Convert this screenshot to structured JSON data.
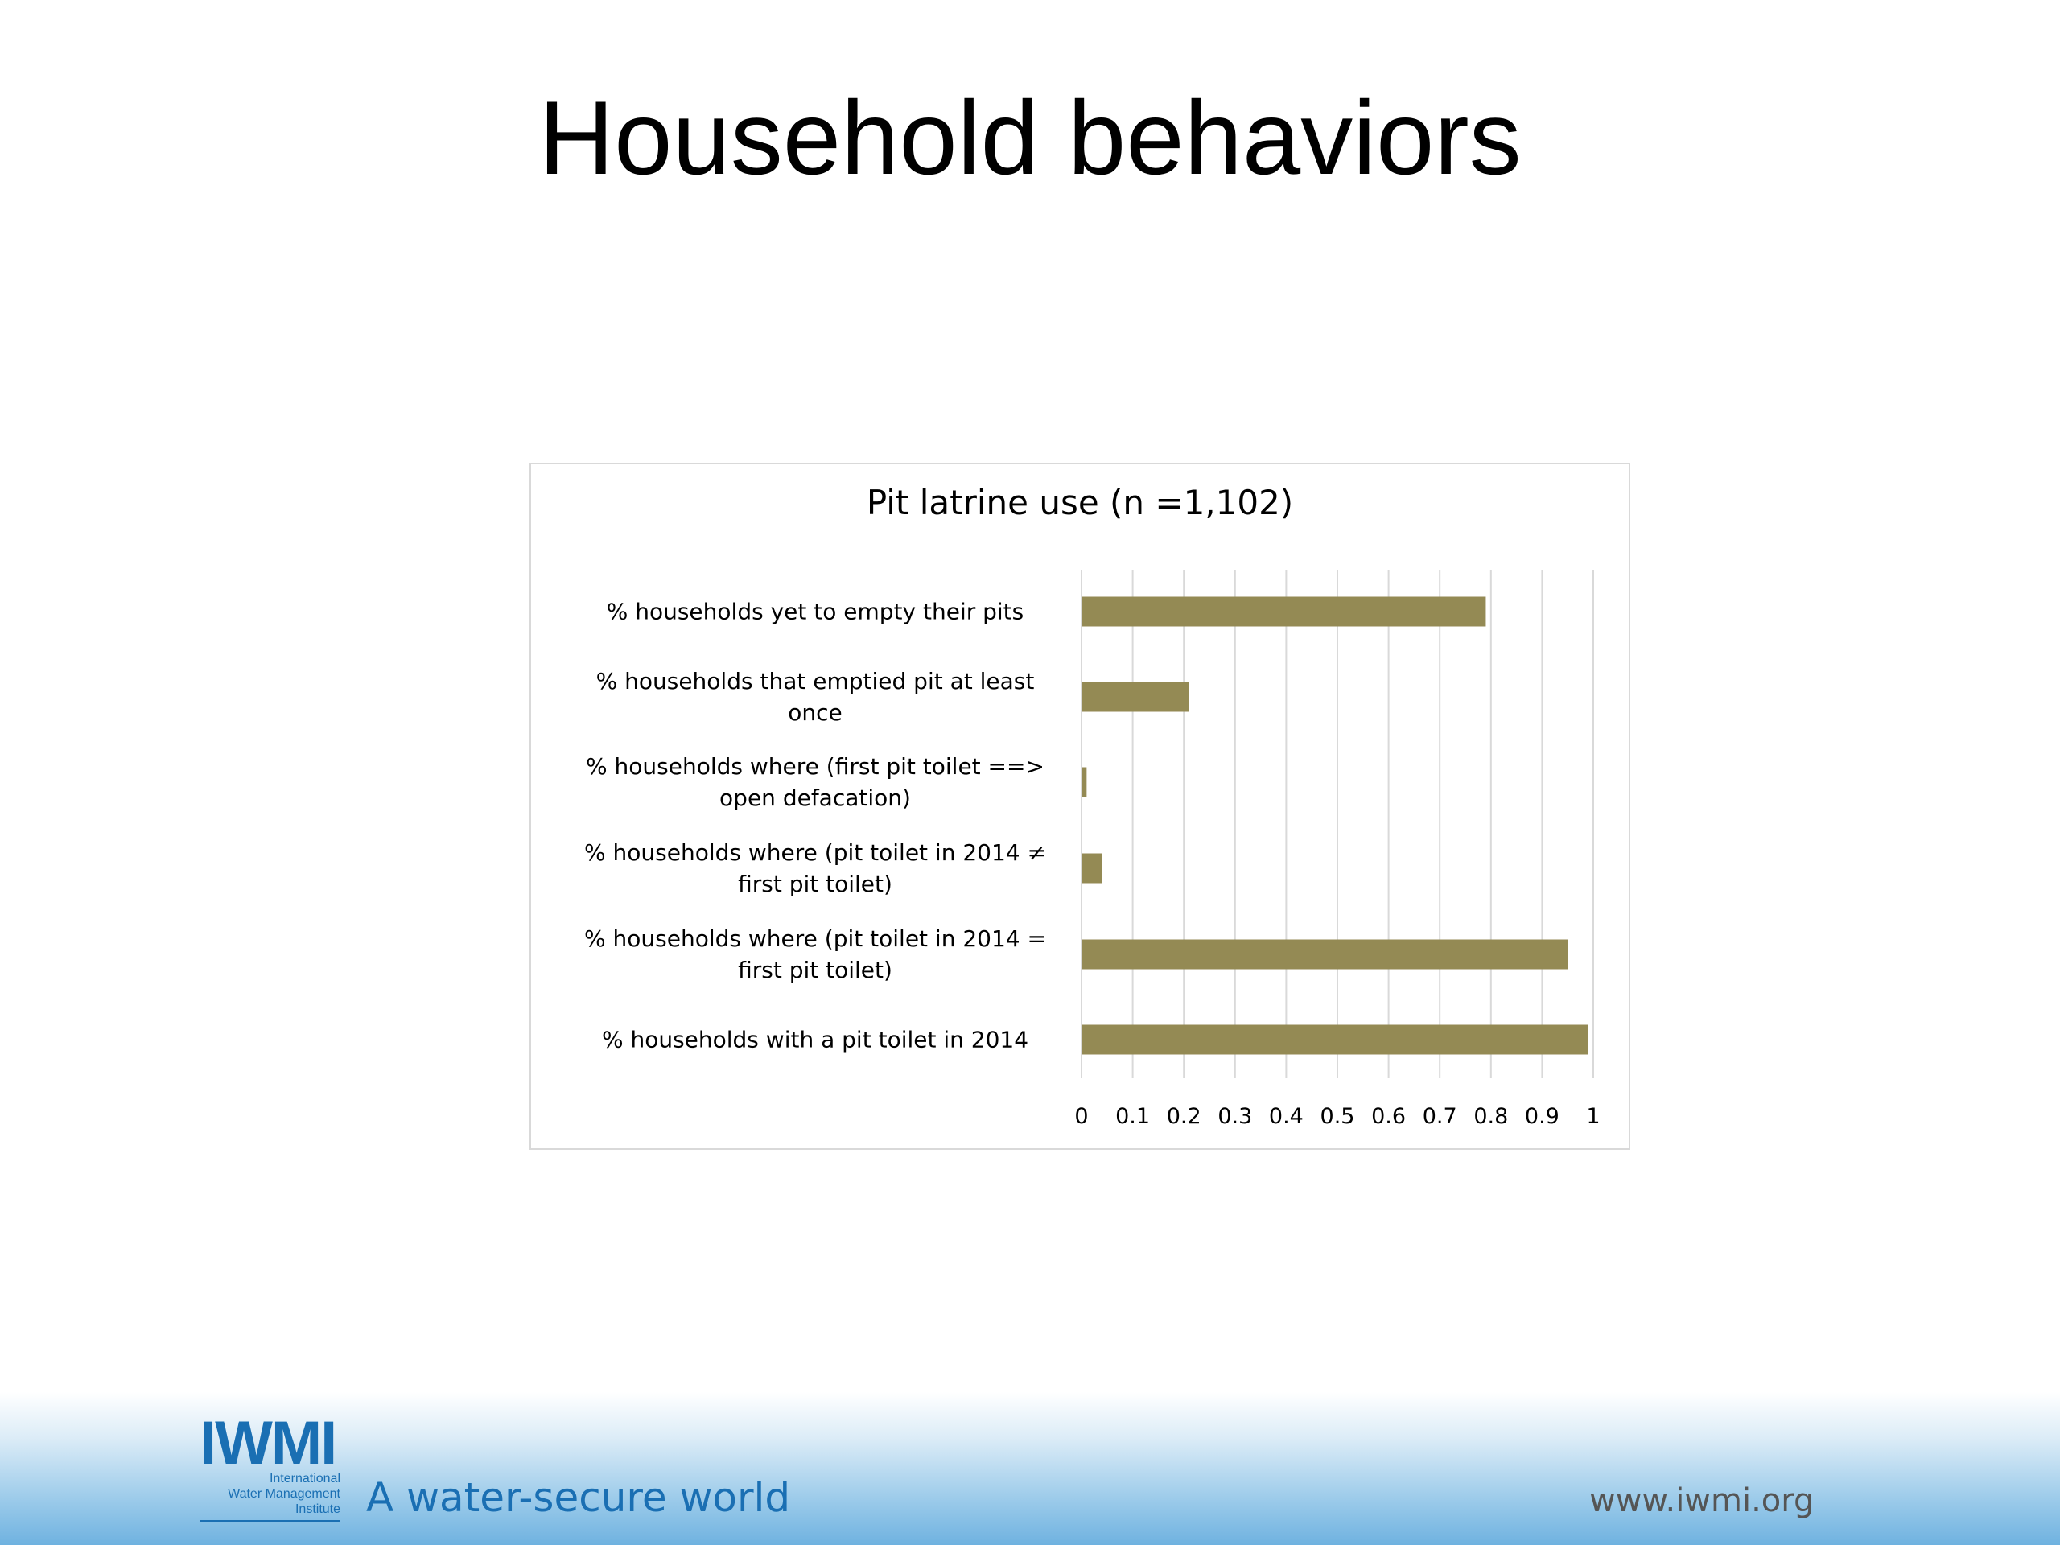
{
  "slide": {
    "title": "Household behaviors"
  },
  "chart_data": {
    "type": "bar",
    "orientation": "horizontal",
    "title": "Pit latrine use (n =1,102)",
    "categories": [
      "% households yet to empty their pits",
      "% households that emptied pit at least once",
      "% households where (first pit toilet ==> open defacation)",
      "%  households where (pit toilet in 2014  ≠ first pit toilet)",
      "% households where (pit toilet in 2014 =  first pit toilet)",
      "% households with a pit toilet in 2014"
    ],
    "values": [
      0.79,
      0.21,
      0.01,
      0.04,
      0.95,
      0.99
    ],
    "xlim": [
      0,
      1
    ],
    "xticks": [
      "0",
      "0.1",
      "0.2",
      "0.3",
      "0.4",
      "0.5",
      "0.6",
      "0.7",
      "0.8",
      "0.9",
      "1"
    ],
    "grid": true,
    "bar_color": "#948a54",
    "legend": "none"
  },
  "footer": {
    "logo_text": "IWMI",
    "logo_sub": [
      "International",
      "Water Management",
      "Institute"
    ],
    "tagline": "A water-secure world",
    "website": "www.iwmi.org"
  }
}
